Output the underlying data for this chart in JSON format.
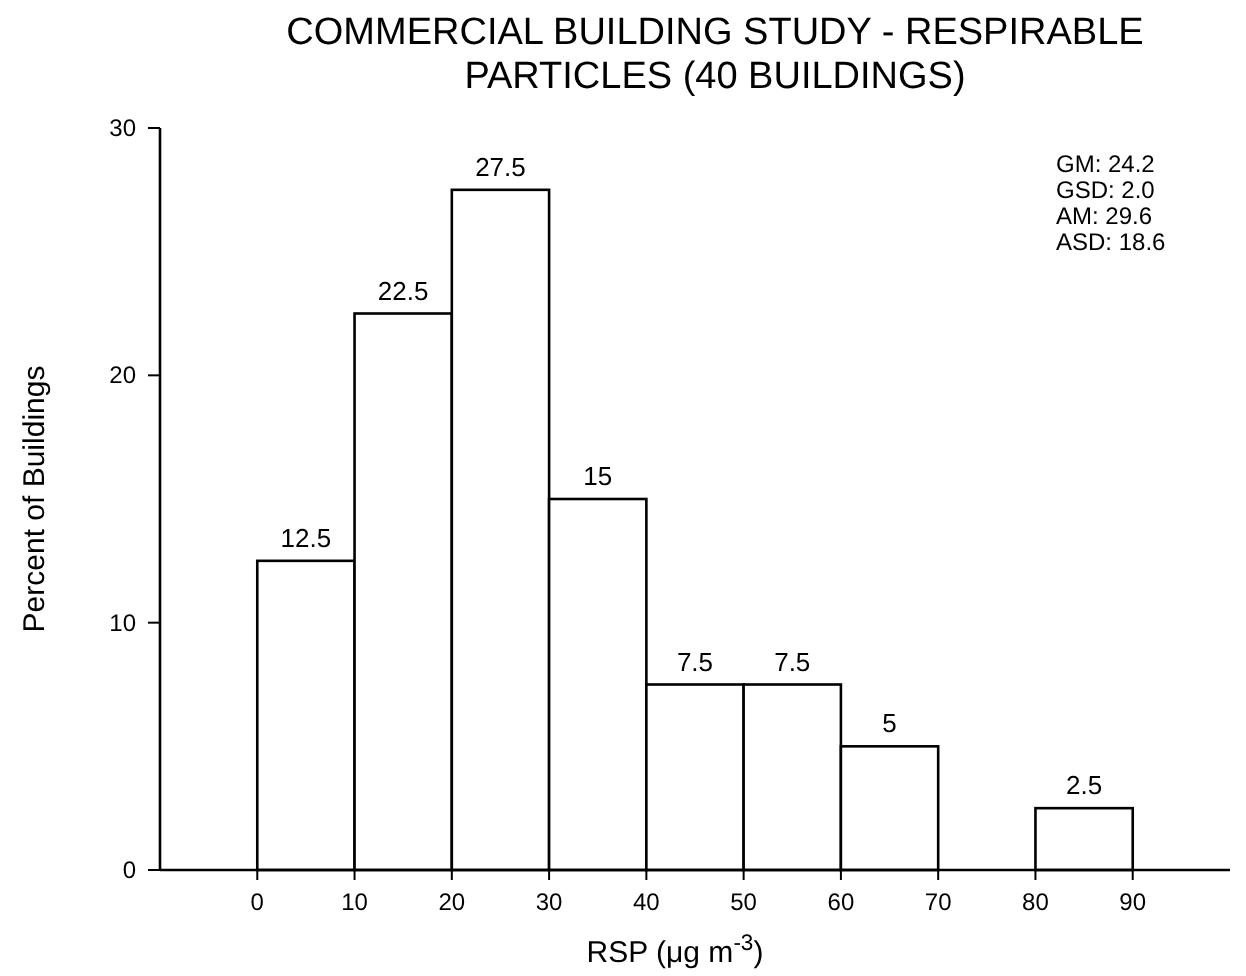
{
  "chart_data": {
    "type": "histogram",
    "title": "COMMERCIAL BUILDING STUDY - RESPIRABLE PARTICLES (40 BUILDINGS)",
    "xlabel": "RSP (μg m$^{-3}$)",
    "ylabel": "Percent of Buildings",
    "bins": [
      0,
      10,
      20,
      30,
      40,
      50,
      60,
      70,
      80,
      90
    ],
    "values": [
      12.5,
      22.5,
      27.5,
      15,
      7.5,
      7.5,
      5,
      0,
      2.5
    ],
    "value_labels": [
      "12.5",
      "22.5",
      "27.5",
      "15",
      "7.5",
      "7.5",
      "5",
      null,
      "2.5"
    ],
    "color": "#ffffff",
    "xlim": [
      -10,
      100
    ],
    "xticks": [
      0,
      10,
      20,
      30,
      40,
      50,
      60,
      70,
      80,
      90
    ],
    "ylim": [
      0,
      30
    ],
    "yticks": [
      0,
      10,
      20,
      30
    ],
    "annotations": [
      "GM: 24.2",
      "GSD: 2.0",
      "AM: 29.6",
      "ASD: 18.6"
    ],
    "grid": false
  }
}
